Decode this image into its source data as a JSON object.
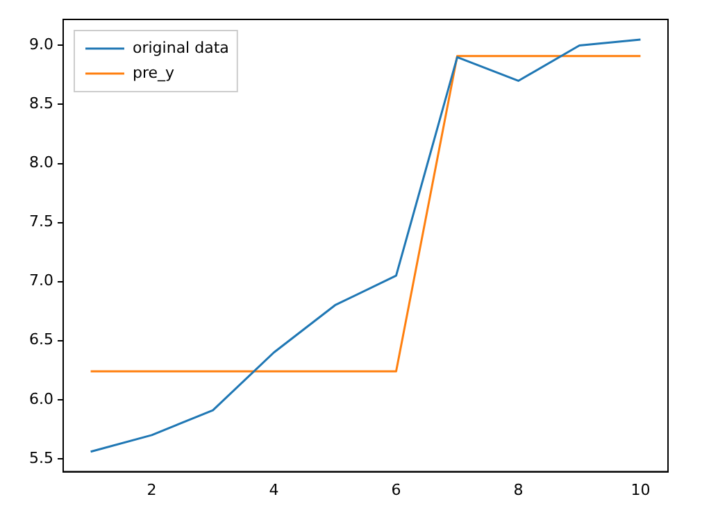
{
  "chart_data": {
    "type": "line",
    "x": [
      1,
      2,
      3,
      4,
      5,
      6,
      7,
      8,
      9,
      10
    ],
    "series": [
      {
        "name": "original data",
        "color": "#1f77b4",
        "values": [
          5.56,
          5.7,
          5.91,
          6.4,
          6.8,
          7.05,
          8.9,
          8.7,
          9.0,
          9.05
        ]
      },
      {
        "name": "pre_y",
        "color": "#ff7f0e",
        "values": [
          6.24,
          6.24,
          6.24,
          6.24,
          6.24,
          6.24,
          8.91,
          8.91,
          8.91,
          8.91
        ]
      }
    ],
    "xlim": [
      0.55,
      10.45
    ],
    "xticks": [
      2,
      4,
      6,
      8,
      10
    ],
    "ylim": [
      5.39,
      9.22
    ],
    "yticks": [
      5.5,
      {
        "value": 6,
        "label": "6.0"
      },
      6.5,
      {
        "value": 7,
        "label": "7.0"
      },
      7.5,
      {
        "value": 8,
        "label": "8.0"
      },
      8.5,
      {
        "value": 9,
        "label": "9.0"
      }
    ],
    "grid": false,
    "legend": "top left",
    "marker": "none",
    "line_style": "solid"
  }
}
